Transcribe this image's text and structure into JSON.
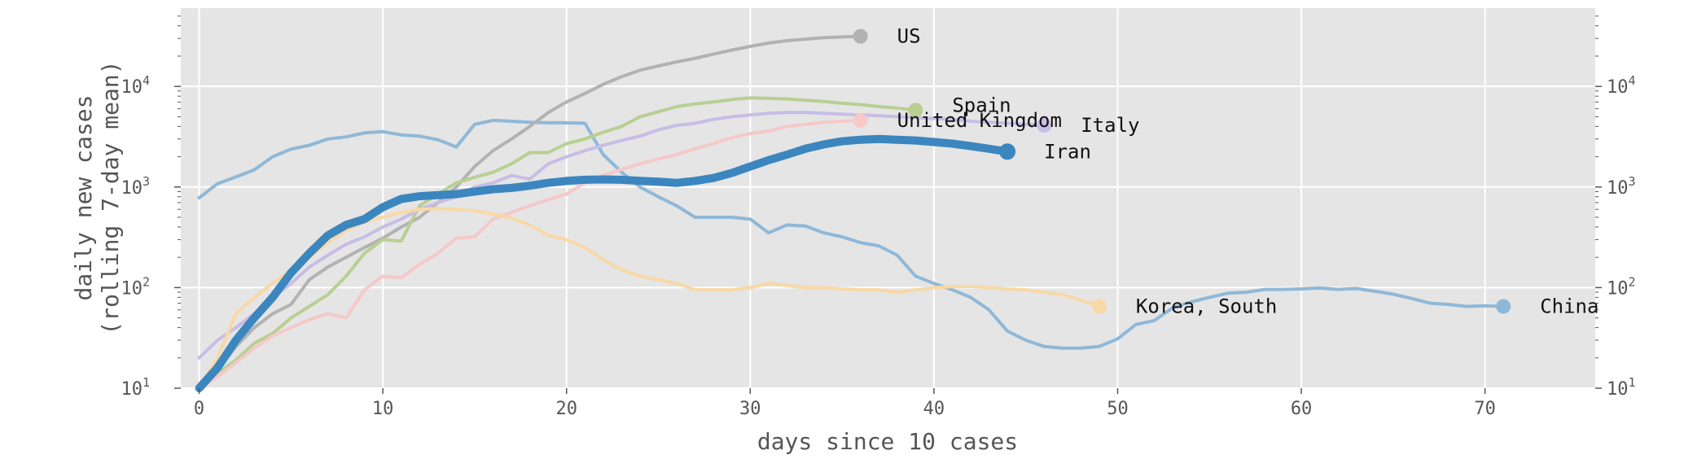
{
  "chart_data": {
    "type": "line",
    "xlabel": "days since 10 cases",
    "ylabel": "daily new cases",
    "ylabel_sub": "(rolling 7-day mean)",
    "xlim": [
      -1,
      76
    ],
    "ylim": [
      10,
      60000
    ],
    "yscale": "log",
    "grid": true,
    "x_ticks": [
      0,
      10,
      20,
      30,
      40,
      50,
      60,
      70
    ],
    "y_ticks": [
      {
        "value": 10,
        "base": "10",
        "exp": "1"
      },
      {
        "value": 100,
        "base": "10",
        "exp": "2"
      },
      {
        "value": 1000,
        "base": "10",
        "exp": "3"
      },
      {
        "value": 10000,
        "base": "10",
        "exp": "4"
      }
    ],
    "series": [
      {
        "name": "China",
        "color": "#8fb8d8",
        "width": 4,
        "highlight": false,
        "x": [
          0,
          1,
          2,
          3,
          4,
          5,
          6,
          7,
          8,
          9,
          10,
          11,
          12,
          13,
          14,
          15,
          16,
          17,
          18,
          19,
          20,
          21,
          22,
          23,
          24,
          25,
          26,
          27,
          28,
          29,
          30,
          31,
          32,
          33,
          34,
          35,
          36,
          37,
          38,
          39,
          40,
          41,
          42,
          43,
          44,
          45,
          46,
          47,
          48,
          49,
          50,
          51,
          52,
          53,
          54,
          55,
          56,
          57,
          58,
          59,
          60,
          61,
          62,
          63,
          64,
          65,
          66,
          67,
          68,
          69,
          70,
          71
        ],
        "y": [
          780,
          1080,
          1260,
          1480,
          2000,
          2380,
          2600,
          3000,
          3150,
          3450,
          3550,
          3300,
          3200,
          2950,
          2500,
          4200,
          4600,
          4500,
          4400,
          4350,
          4350,
          4300,
          2100,
          1400,
          1000,
          800,
          650,
          500,
          500,
          500,
          480,
          350,
          420,
          410,
          350,
          320,
          280,
          260,
          210,
          130,
          110,
          95,
          80,
          60,
          37,
          30,
          26,
          25,
          25,
          26,
          31,
          43,
          47,
          63,
          72,
          80,
          88,
          90,
          96,
          96,
          97,
          99,
          96,
          98,
          92,
          86,
          78,
          70,
          68,
          65,
          66,
          65
        ]
      },
      {
        "name": "US",
        "color": "#b2b2b2",
        "width": 4,
        "highlight": false,
        "x": [
          0,
          1,
          2,
          3,
          4,
          5,
          6,
          7,
          8,
          9,
          10,
          11,
          12,
          13,
          14,
          15,
          16,
          17,
          18,
          19,
          20,
          21,
          22,
          23,
          24,
          25,
          26,
          27,
          28,
          29,
          30,
          31,
          32,
          33,
          34,
          35,
          36
        ],
        "y": [
          10,
          15,
          26,
          40,
          55,
          68,
          120,
          160,
          200,
          250,
          310,
          400,
          500,
          700,
          1000,
          1600,
          2300,
          3000,
          4000,
          5500,
          7000,
          8500,
          10500,
          12500,
          14500,
          16000,
          17500,
          19000,
          21000,
          23000,
          25000,
          27000,
          28500,
          29500,
          30500,
          31000,
          31500
        ]
      },
      {
        "name": "Spain",
        "color": "#b8cf92",
        "width": 4,
        "highlight": false,
        "x": [
          0,
          1,
          2,
          3,
          4,
          5,
          6,
          7,
          8,
          9,
          10,
          11,
          12,
          13,
          14,
          15,
          16,
          17,
          18,
          19,
          20,
          21,
          22,
          23,
          24,
          25,
          26,
          27,
          28,
          29,
          30,
          31,
          32,
          33,
          34,
          35,
          36,
          37,
          38,
          39
        ],
        "y": [
          10,
          14,
          19,
          28,
          35,
          50,
          65,
          85,
          130,
          220,
          300,
          290,
          650,
          850,
          1100,
          1250,
          1400,
          1700,
          2200,
          2200,
          2700,
          3000,
          3500,
          4000,
          5000,
          5600,
          6300,
          6700,
          7000,
          7400,
          7700,
          7600,
          7500,
          7300,
          7100,
          6800,
          6600,
          6300,
          6100,
          5800
        ]
      },
      {
        "name": "Italy",
        "color": "#c7bde6",
        "width": 4,
        "highlight": false,
        "x": [
          0,
          1,
          2,
          3,
          4,
          5,
          6,
          7,
          8,
          9,
          10,
          11,
          12,
          13,
          14,
          15,
          16,
          17,
          18,
          19,
          20,
          21,
          22,
          23,
          24,
          25,
          26,
          27,
          28,
          29,
          30,
          31,
          32,
          33,
          34,
          35,
          36,
          37,
          38,
          39,
          40,
          41,
          42,
          43,
          44,
          45,
          46
        ],
        "y": [
          20,
          30,
          40,
          55,
          80,
          110,
          160,
          210,
          270,
          320,
          400,
          480,
          600,
          700,
          800,
          1000,
          1100,
          1300,
          1200,
          1700,
          2000,
          2300,
          2600,
          2900,
          3200,
          3700,
          4100,
          4300,
          4700,
          5000,
          5200,
          5400,
          5500,
          5500,
          5400,
          5300,
          5200,
          5100,
          5000,
          4900,
          4800,
          4700,
          4500,
          4400,
          4300,
          4200,
          4100
        ]
      },
      {
        "name": "United Kingdom",
        "color": "#f6c8c8",
        "width": 4,
        "highlight": false,
        "x": [
          0,
          1,
          2,
          3,
          4,
          5,
          6,
          7,
          8,
          9,
          10,
          11,
          12,
          13,
          14,
          15,
          16,
          17,
          18,
          19,
          20,
          21,
          22,
          23,
          24,
          25,
          26,
          27,
          28,
          29,
          30,
          31,
          32,
          33,
          34,
          35,
          36
        ],
        "y": [
          10,
          13,
          18,
          25,
          33,
          40,
          48,
          55,
          50,
          95,
          130,
          125,
          170,
          220,
          310,
          320,
          480,
          560,
          650,
          750,
          850,
          1100,
          1300,
          1500,
          1700,
          1900,
          2100,
          2400,
          2700,
          3100,
          3400,
          3600,
          4000,
          4200,
          4400,
          4500,
          4600
        ]
      },
      {
        "name": "Korea, South",
        "color": "#f8d8a6",
        "width": 4,
        "highlight": false,
        "x": [
          0,
          1,
          2,
          3,
          4,
          5,
          6,
          7,
          8,
          9,
          10,
          11,
          12,
          13,
          14,
          15,
          16,
          17,
          18,
          19,
          20,
          21,
          22,
          23,
          24,
          25,
          26,
          27,
          28,
          29,
          30,
          31,
          32,
          33,
          34,
          35,
          36,
          37,
          38,
          39,
          40,
          41,
          42,
          43,
          44,
          45,
          46,
          47,
          48,
          49
        ],
        "y": [
          10,
          20,
          55,
          80,
          110,
          150,
          200,
          280,
          370,
          450,
          500,
          560,
          600,
          610,
          600,
          580,
          540,
          490,
          420,
          330,
          300,
          250,
          190,
          150,
          130,
          120,
          110,
          95,
          95,
          95,
          100,
          110,
          105,
          100,
          100,
          97,
          95,
          95,
          90,
          95,
          100,
          102,
          103,
          100,
          97,
          95,
          90,
          85,
          75,
          65
        ]
      },
      {
        "name": "Iran",
        "color": "#3b86bf",
        "width": 10,
        "highlight": true,
        "x": [
          0,
          1,
          2,
          3,
          4,
          5,
          6,
          7,
          8,
          9,
          10,
          11,
          12,
          13,
          14,
          15,
          16,
          17,
          18,
          19,
          20,
          21,
          22,
          23,
          24,
          25,
          26,
          27,
          28,
          29,
          30,
          31,
          32,
          33,
          34,
          35,
          36,
          37,
          38,
          39,
          40,
          41,
          42,
          43,
          44
        ],
        "y": [
          10,
          16,
          30,
          50,
          80,
          140,
          220,
          330,
          420,
          480,
          630,
          760,
          810,
          830,
          850,
          900,
          950,
          980,
          1030,
          1100,
          1150,
          1180,
          1190,
          1180,
          1150,
          1130,
          1100,
          1150,
          1230,
          1380,
          1600,
          1850,
          2100,
          2400,
          2650,
          2850,
          2950,
          3000,
          2950,
          2900,
          2800,
          2700,
          2550,
          2400,
          2250
        ]
      }
    ],
    "end_labels": [
      "US",
      "Spain",
      "United Kingdom",
      "Italy",
      "Iran",
      "Korea, South",
      "China"
    ]
  }
}
